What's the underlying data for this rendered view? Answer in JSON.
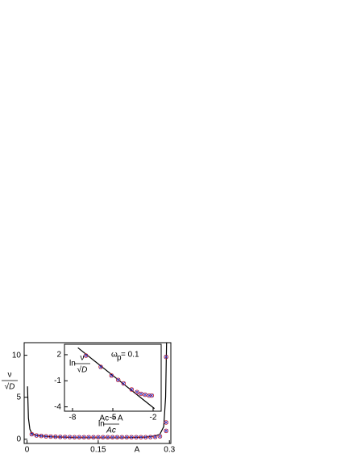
{
  "chart_data": [
    {
      "type": "line",
      "ylabel": {
        "numerator": "ν",
        "denominator": "√D"
      },
      "xlabel": "A",
      "xlim": [
        -0.006,
        0.303
      ],
      "ylim": [
        -0.5,
        11.5
      ],
      "xticks": [
        0,
        0.15,
        0.3
      ],
      "yticks": [
        0,
        5,
        10
      ],
      "series": [
        {
          "type": "line",
          "color": "#000000",
          "x": [
            0.001,
            0.003,
            0.006,
            0.01,
            0.02,
            0.05,
            0.1,
            0.15,
            0.2,
            0.25,
            0.27,
            0.28,
            0.288,
            0.292,
            0.294
          ],
          "values": [
            6.3,
            2.5,
            1.2,
            0.7,
            0.45,
            0.3,
            0.2,
            0.18,
            0.18,
            0.25,
            0.4,
            0.6,
            1.5,
            5,
            11.5
          ]
        },
        {
          "type": "scatter",
          "marker": "circle",
          "color": "#d62728",
          "x": [
            0.01,
            0.02,
            0.03,
            0.04,
            0.05,
            0.06,
            0.07,
            0.08,
            0.09,
            0.1,
            0.11,
            0.12,
            0.13,
            0.14,
            0.15,
            0.16,
            0.17,
            0.18,
            0.19,
            0.2,
            0.21,
            0.22,
            0.23,
            0.24,
            0.25,
            0.26,
            0.27,
            0.28,
            0.293,
            0.293,
            0.293
          ],
          "values": [
            0.6,
            0.45,
            0.4,
            0.35,
            0.32,
            0.3,
            0.28,
            0.27,
            0.26,
            0.25,
            0.25,
            0.25,
            0.25,
            0.25,
            0.25,
            0.25,
            0.25,
            0.25,
            0.25,
            0.25,
            0.25,
            0.25,
            0.25,
            0.25,
            0.25,
            0.26,
            0.28,
            0.35,
            1.0,
            2.0,
            9.8
          ]
        },
        {
          "type": "scatter",
          "marker": "cross",
          "color": "#3b3bc8",
          "x": [
            0.01,
            0.02,
            0.03,
            0.04,
            0.05,
            0.06,
            0.07,
            0.08,
            0.09,
            0.1,
            0.11,
            0.12,
            0.13,
            0.14,
            0.15,
            0.16,
            0.17,
            0.18,
            0.19,
            0.2,
            0.21,
            0.22,
            0.23,
            0.24,
            0.25,
            0.26,
            0.27,
            0.28,
            0.293,
            0.293,
            0.293
          ],
          "values": [
            0.6,
            0.45,
            0.4,
            0.35,
            0.32,
            0.3,
            0.28,
            0.27,
            0.26,
            0.25,
            0.25,
            0.25,
            0.25,
            0.25,
            0.25,
            0.25,
            0.25,
            0.25,
            0.25,
            0.25,
            0.25,
            0.25,
            0.25,
            0.25,
            0.25,
            0.26,
            0.28,
            0.35,
            1.0,
            2.0,
            9.8
          ]
        }
      ]
    },
    {
      "type": "line",
      "ylabel": {
        "prefix": "ln",
        "numerator": "ν",
        "denominator": "√D"
      },
      "xlabel": {
        "prefix": "ln",
        "numerator": "Ac − A",
        "denominator": "Ac"
      },
      "annotation": {
        "symbol": "ω",
        "subscript": "p",
        "text": "= 0.1"
      },
      "xlim": [
        -8.6,
        -1.4
      ],
      "ylim": [
        -4.5,
        3.2
      ],
      "xticks": [
        -8,
        -5,
        -2
      ],
      "yticks": [
        2,
        -1,
        -4
      ],
      "series": [
        {
          "type": "line",
          "color": "#000000",
          "x": [
            -7.6,
            -1.9
          ],
          "values": [
            2.8,
            -4.2
          ]
        },
        {
          "type": "scatter",
          "marker": "circle",
          "color": "#d62728",
          "x": [
            -7.0,
            -5.9,
            -5.1,
            -4.6,
            -4.2,
            -3.6,
            -3.2,
            -2.9,
            -2.6,
            -2.3,
            -2.1
          ],
          "values": [
            1.9,
            0.6,
            -0.4,
            -0.9,
            -1.3,
            -2.0,
            -2.3,
            -2.5,
            -2.6,
            -2.7,
            -2.7
          ]
        },
        {
          "type": "scatter",
          "marker": "cross",
          "color": "#3b3bc8",
          "x": [
            -7.0,
            -5.9,
            -5.1,
            -4.6,
            -4.2,
            -3.6,
            -3.2,
            -2.9,
            -2.6,
            -2.3,
            -2.1
          ],
          "values": [
            1.9,
            0.6,
            -0.4,
            -0.9,
            -1.3,
            -2.0,
            -2.3,
            -2.5,
            -2.6,
            -2.7,
            -2.7
          ]
        }
      ]
    }
  ]
}
